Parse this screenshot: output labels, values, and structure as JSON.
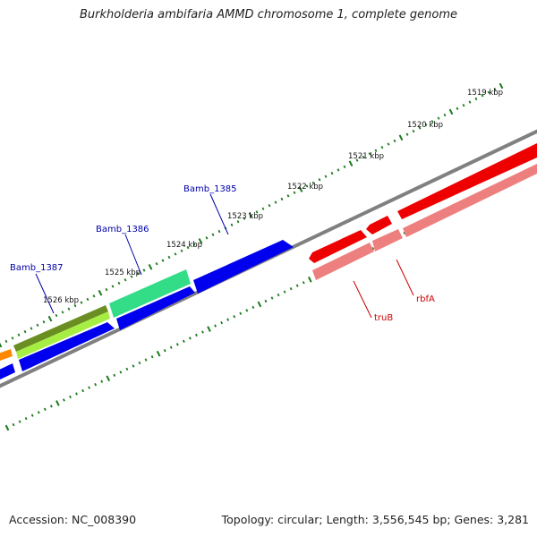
{
  "title": "Burkholderia ambifaria AMMD chromosome 1, complete genome",
  "accession": "Accession: NC_008390",
  "summary": "Topology: circular; Length: 3,556,545 bp; Genes: 3,281",
  "colors": {
    "backbone": "#808080",
    "tick": "#1a7a1a",
    "gene_blue": "#0000ee",
    "gene_red": "#ee0000",
    "gene_pink": "#ee7f7f",
    "gene_green": "#33dd88",
    "gene_olive": "#6b8e23",
    "gene_lime": "#a6ee44",
    "gene_orange": "#ff8800",
    "label_blue": "#0000aa",
    "label_red": "#cc0000"
  },
  "kbp_labels": [
    "1519 kbp",
    "1520 kbp",
    "1521 kbp",
    "1522 kbp",
    "1523 kbp",
    "1524 kbp",
    "1525 kbp",
    "1526 kbp"
  ],
  "gene_labels": {
    "bamb1385": "Bamb_1385",
    "bamb1386": "Bamb_1386",
    "bamb1387": "Bamb_1387",
    "truB": "truB",
    "rbfA": "rbfA"
  }
}
